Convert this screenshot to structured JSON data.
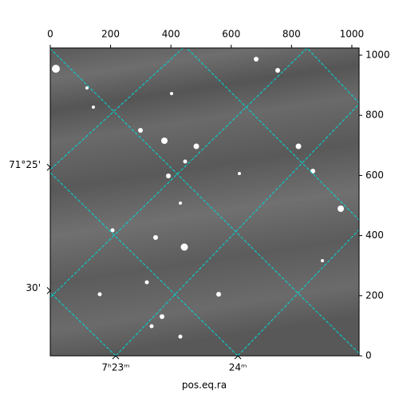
{
  "chart_data": {
    "type": "image",
    "xlabel": "pos.eq.ra",
    "xlim": [
      0,
      1024
    ],
    "ylim": [
      0,
      1024
    ],
    "xticks": [
      0,
      200,
      400,
      600,
      800,
      1000
    ],
    "yticks": [
      0,
      200,
      400,
      600,
      800,
      1000
    ],
    "ra_ticks": [
      {
        "value": 217,
        "label": "7ʰ23ᵐ"
      },
      {
        "value": 622,
        "label": "24ᵐ"
      }
    ],
    "dec_ticks": [
      {
        "value": 627,
        "label": "71°25'"
      },
      {
        "value": 217,
        "label": "30'"
      }
    ],
    "grid_color": "#00d8d8"
  }
}
